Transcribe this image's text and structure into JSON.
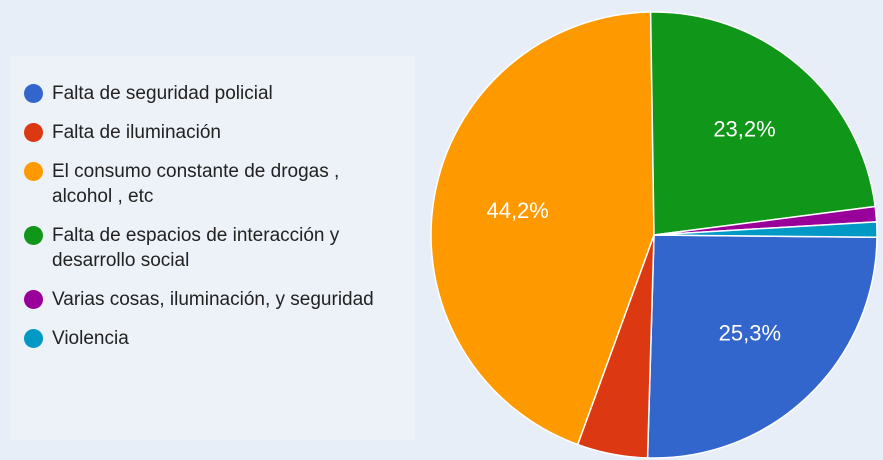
{
  "chart_data": {
    "type": "pie",
    "categories": [
      "Falta de seguridad policial",
      "Falta de iluminación",
      "El consumo constante de drogas , alcohol , etc",
      "Falta de espacios de interacción y desarrollo social",
      "Varias cosas, iluminación, y seguridad",
      "Violencia"
    ],
    "values": [
      25.3,
      5.1,
      44.2,
      23.2,
      1.1,
      1.1
    ],
    "value_labels": [
      "25,3%",
      null,
      "44,2%",
      "23,2%",
      null,
      null
    ],
    "colors": [
      "#3366cc",
      "#dc3912",
      "#ff9900",
      "#109618",
      "#990099",
      "#0099c6"
    ],
    "legend": "left"
  }
}
